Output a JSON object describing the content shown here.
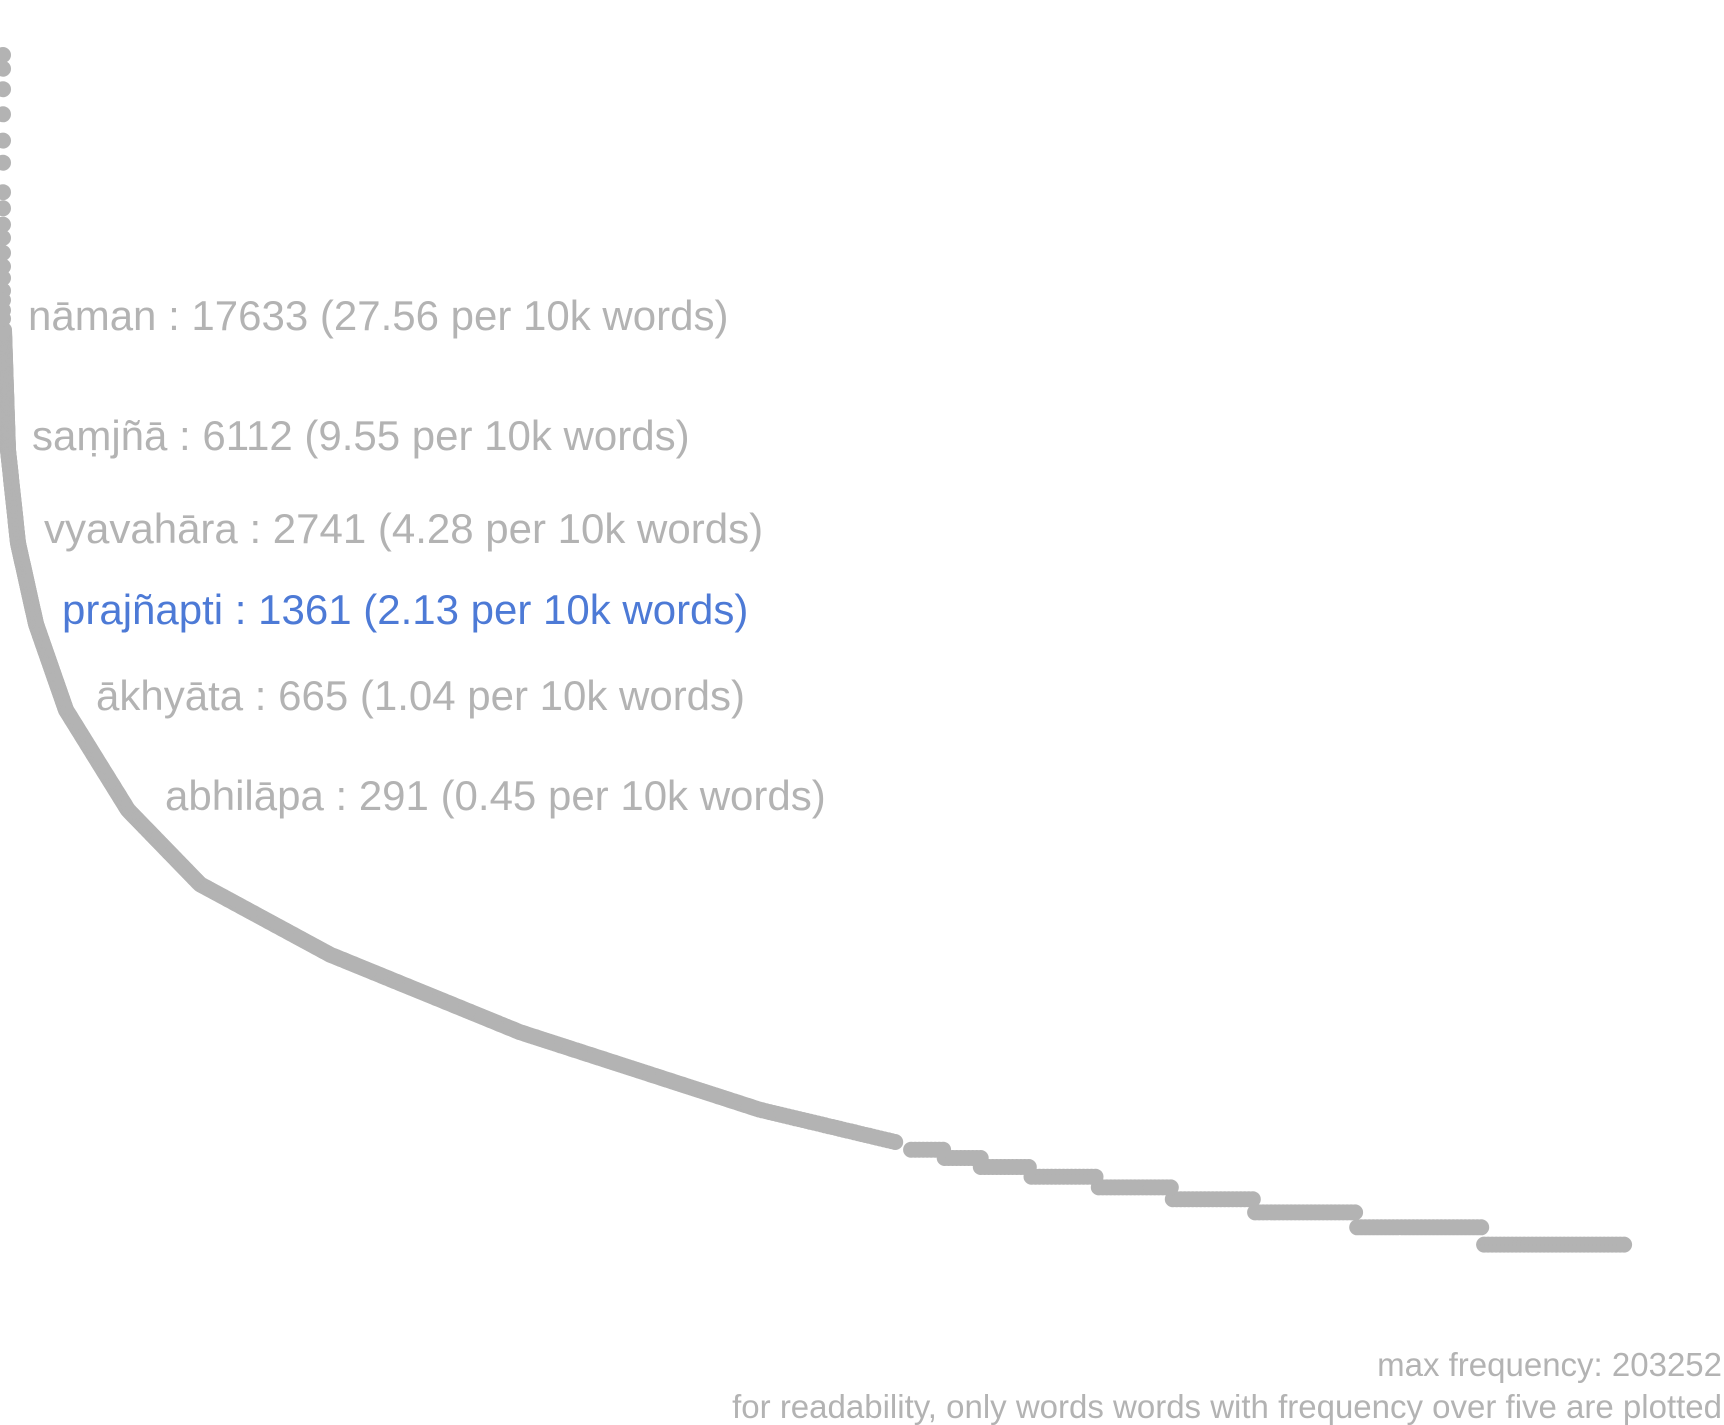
{
  "chart_data": {
    "type": "scatter",
    "title": "",
    "xlabel": "",
    "ylabel": "",
    "y_scale": "log",
    "ylim": [
      5,
      203252
    ],
    "grid": false,
    "legend": "none",
    "point_color": "#b3b3b3",
    "highlight_color": "#4d7ad6",
    "label_color": "#b3b3b3",
    "annotations": [
      {
        "word": "nāman",
        "frequency": 17633,
        "per_10k": "27.56",
        "text": "nāman : 17633 (27.56 per 10k words)",
        "highlight": false
      },
      {
        "word": "saṃjñā",
        "frequency": 6112,
        "per_10k": "9.55",
        "text": "saṃjñā : 6112 (9.55 per 10k words)",
        "highlight": false
      },
      {
        "word": "vyavahāra",
        "frequency": 2741,
        "per_10k": "4.28",
        "text": "vyavahāra : 2741 (4.28 per 10k words)",
        "highlight": false
      },
      {
        "word": "prajñapti",
        "frequency": 1361,
        "per_10k": "2.13",
        "text": "prajñapti : 1361 (2.13 per 10k words)",
        "highlight": true
      },
      {
        "word": "ākhyāta",
        "frequency": 665,
        "per_10k": "1.04",
        "text": "ākhyāta : 665 (1.04 per 10k words)",
        "highlight": false
      },
      {
        "word": "abhilāpa",
        "frequency": 291,
        "per_10k": "0.45",
        "text": "abhilāpa : 291 (0.45 per 10k words)",
        "highlight": false
      }
    ]
  },
  "footer": {
    "max_frequency": "max frequency: 203252",
    "note": "for readability, only words words with frequency over five are plotted"
  }
}
